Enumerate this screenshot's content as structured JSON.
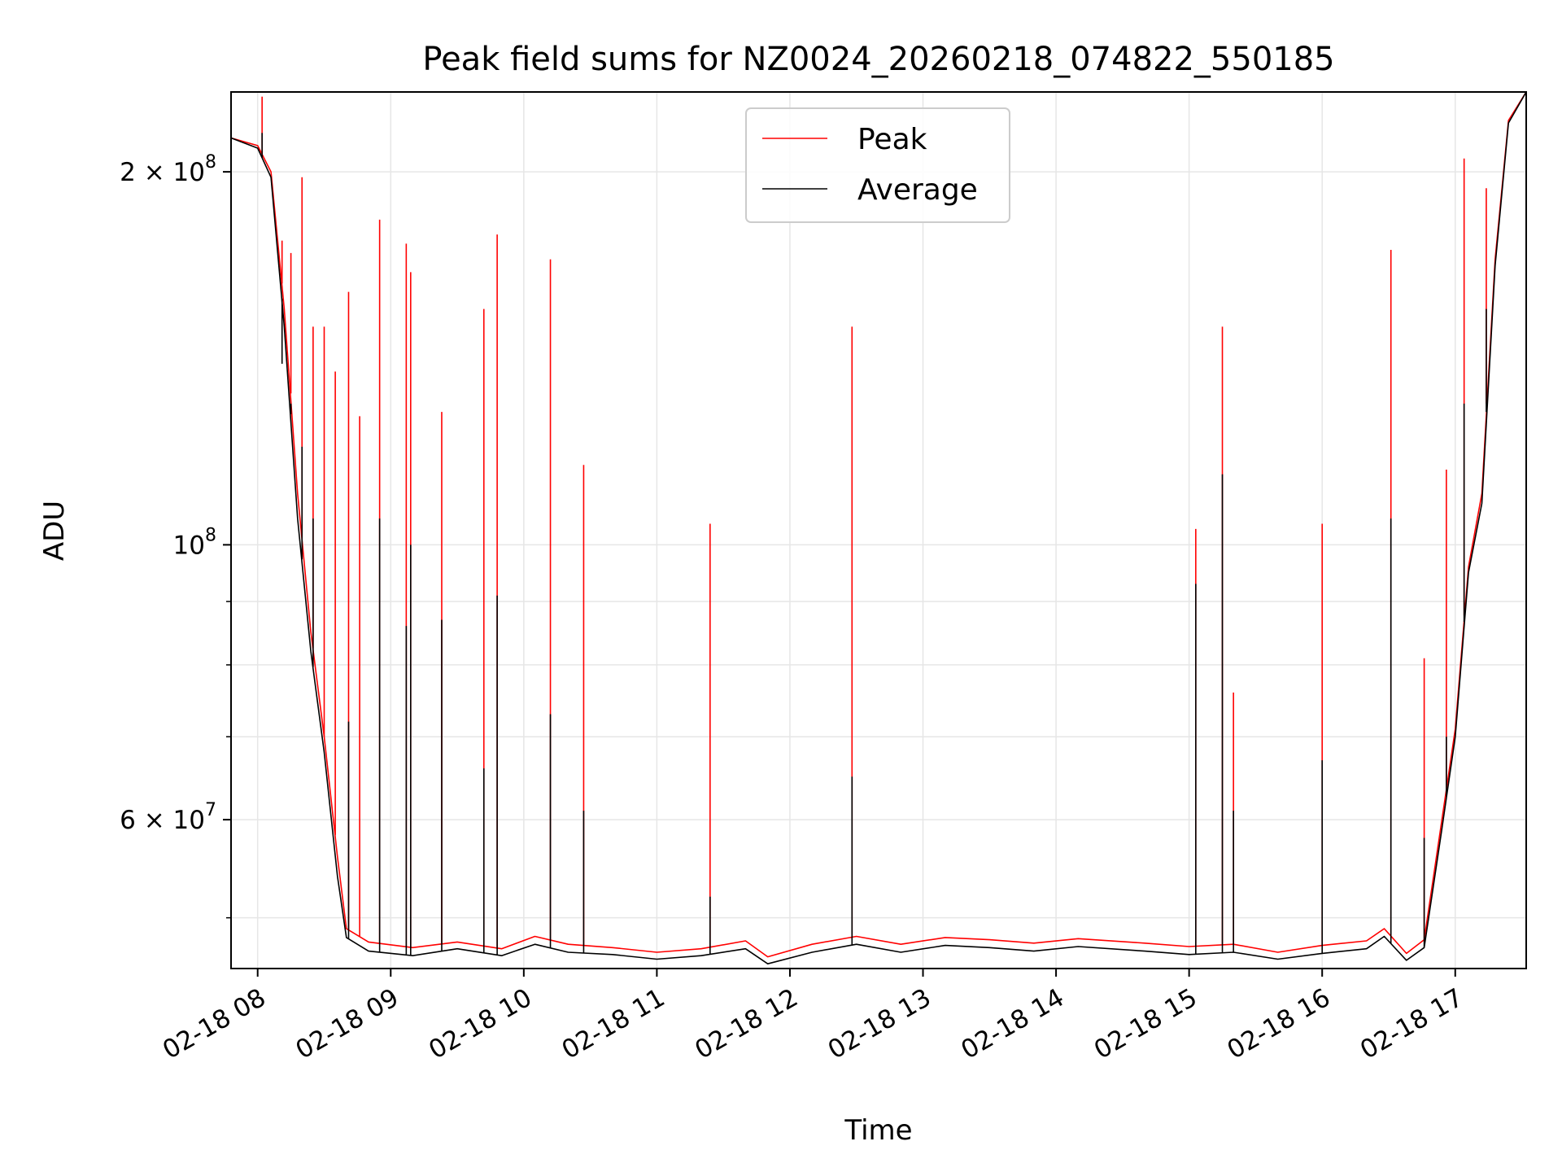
{
  "chart_data": {
    "type": "line",
    "title": "Peak field sums for NZ0024_20260218_074822_550185",
    "xlabel": "Time",
    "ylabel": "ADU",
    "yscale": "log",
    "xlim": [
      "02-18 07:48",
      "02-18 17:32"
    ],
    "ylim": [
      45500000,
      232000000
    ],
    "grid": true,
    "legend_position": "top-center",
    "x_ticks": [
      "02-18 08",
      "02-18 09",
      "02-18 10",
      "02-18 11",
      "02-18 12",
      "02-18 13",
      "02-18 14",
      "02-18 15",
      "02-18 16",
      "02-18 17"
    ],
    "y_ticks": [
      {
        "value": 200000000,
        "label_base": "2 × 10",
        "label_exp": "8"
      },
      {
        "value": 100000000,
        "label_base": "10",
        "label_exp": "8"
      },
      {
        "value": 60000000,
        "label_base": "6 × 10",
        "label_exp": "7"
      }
    ],
    "y_minor_ticks": [
      50000000,
      70000000,
      80000000,
      90000000
    ],
    "series": [
      {
        "name": "Peak",
        "color": "#ff0000",
        "baseline": [
          [
            "02-18 07:48",
            213000000
          ],
          [
            "02-18 08:00",
            210000000
          ],
          [
            "02-18 08:06",
            200000000
          ],
          [
            "02-18 08:12",
            155000000
          ],
          [
            "02-18 08:18",
            110000000
          ],
          [
            "02-18 08:24",
            85000000
          ],
          [
            "02-18 08:30",
            70000000
          ],
          [
            "02-18 08:36",
            56000000
          ],
          [
            "02-18 08:40",
            49000000
          ],
          [
            "02-18 08:50",
            47800000
          ],
          [
            "02-18 09:10",
            47300000
          ],
          [
            "02-18 09:30",
            47800000
          ],
          [
            "02-18 09:50",
            47200000
          ],
          [
            "02-18 10:05",
            48300000
          ],
          [
            "02-18 10:20",
            47600000
          ],
          [
            "02-18 10:40",
            47300000
          ],
          [
            "02-18 11:00",
            46900000
          ],
          [
            "02-18 11:20",
            47200000
          ],
          [
            "02-18 11:40",
            47900000
          ],
          [
            "02-18 11:50",
            46500000
          ],
          [
            "02-18 12:10",
            47600000
          ],
          [
            "02-18 12:30",
            48300000
          ],
          [
            "02-18 12:50",
            47600000
          ],
          [
            "02-18 13:10",
            48200000
          ],
          [
            "02-18 13:30",
            48000000
          ],
          [
            "02-18 13:50",
            47700000
          ],
          [
            "02-18 14:10",
            48100000
          ],
          [
            "02-18 14:40",
            47700000
          ],
          [
            "02-18 15:00",
            47400000
          ],
          [
            "02-18 15:20",
            47600000
          ],
          [
            "02-18 15:40",
            46900000
          ],
          [
            "02-18 16:00",
            47500000
          ],
          [
            "02-18 16:20",
            47900000
          ],
          [
            "02-18 16:28",
            49000000
          ],
          [
            "02-18 16:38",
            46800000
          ],
          [
            "02-18 16:46",
            48000000
          ],
          [
            "02-18 16:54",
            60000000
          ],
          [
            "02-18 17:00",
            71000000
          ],
          [
            "02-18 17:06",
            96000000
          ],
          [
            "02-18 17:12",
            110000000
          ],
          [
            "02-18 17:18",
            170000000
          ],
          [
            "02-18 17:24",
            220000000
          ],
          [
            "02-18 17:32",
            232000000
          ]
        ],
        "spikes": [
          [
            "02-18 08:02",
            230000000
          ],
          [
            "02-18 08:11",
            176000000
          ],
          [
            "02-18 08:15",
            172000000
          ],
          [
            "02-18 08:20",
            198000000
          ],
          [
            "02-18 08:25",
            150000000
          ],
          [
            "02-18 08:30",
            150000000
          ],
          [
            "02-18 08:35",
            138000000
          ],
          [
            "02-18 08:41",
            160000000
          ],
          [
            "02-18 08:46",
            127000000
          ],
          [
            "02-18 08:55",
            183000000
          ],
          [
            "02-18 09:07",
            175000000
          ],
          [
            "02-18 09:09",
            166000000
          ],
          [
            "02-18 09:23",
            128000000
          ],
          [
            "02-18 09:42",
            155000000
          ],
          [
            "02-18 09:48",
            178000000
          ],
          [
            "02-18 10:12",
            170000000
          ],
          [
            "02-18 10:27",
            116000000
          ],
          [
            "02-18 11:24",
            104000000
          ],
          [
            "02-18 12:28",
            150000000
          ],
          [
            "02-18 15:03",
            103000000
          ],
          [
            "02-18 15:15",
            150000000
          ],
          [
            "02-18 15:20",
            76000000
          ],
          [
            "02-18 16:00",
            104000000
          ],
          [
            "02-18 16:31",
            173000000
          ],
          [
            "02-18 16:46",
            81000000
          ],
          [
            "02-18 16:56",
            115000000
          ],
          [
            "02-18 17:04",
            205000000
          ],
          [
            "02-18 17:14",
            194000000
          ]
        ]
      },
      {
        "name": "Average",
        "color": "#000000",
        "baseline": [
          [
            "02-18 07:48",
            213000000
          ],
          [
            "02-18 08:00",
            209000000
          ],
          [
            "02-18 08:06",
            198000000
          ],
          [
            "02-18 08:12",
            150000000
          ],
          [
            "02-18 08:18",
            105000000
          ],
          [
            "02-18 08:24",
            82000000
          ],
          [
            "02-18 08:30",
            68000000
          ],
          [
            "02-18 08:36",
            54000000
          ],
          [
            "02-18 08:40",
            48200000
          ],
          [
            "02-18 08:50",
            47000000
          ],
          [
            "02-18 09:10",
            46600000
          ],
          [
            "02-18 09:30",
            47200000
          ],
          [
            "02-18 09:50",
            46600000
          ],
          [
            "02-18 10:05",
            47600000
          ],
          [
            "02-18 10:20",
            46900000
          ],
          [
            "02-18 10:40",
            46700000
          ],
          [
            "02-18 11:00",
            46300000
          ],
          [
            "02-18 11:20",
            46600000
          ],
          [
            "02-18 11:40",
            47200000
          ],
          [
            "02-18 11:50",
            45900000
          ],
          [
            "02-18 12:10",
            46900000
          ],
          [
            "02-18 12:30",
            47600000
          ],
          [
            "02-18 12:50",
            46900000
          ],
          [
            "02-18 13:10",
            47500000
          ],
          [
            "02-18 13:30",
            47300000
          ],
          [
            "02-18 13:50",
            47000000
          ],
          [
            "02-18 14:10",
            47400000
          ],
          [
            "02-18 14:40",
            47000000
          ],
          [
            "02-18 15:00",
            46700000
          ],
          [
            "02-18 15:20",
            46900000
          ],
          [
            "02-18 15:40",
            46300000
          ],
          [
            "02-18 16:00",
            46800000
          ],
          [
            "02-18 16:20",
            47200000
          ],
          [
            "02-18 16:28",
            48300000
          ],
          [
            "02-18 16:38",
            46200000
          ],
          [
            "02-18 16:46",
            47300000
          ],
          [
            "02-18 16:54",
            59000000
          ],
          [
            "02-18 17:00",
            70000000
          ],
          [
            "02-18 17:06",
            95000000
          ],
          [
            "02-18 17:12",
            108000000
          ],
          [
            "02-18 17:18",
            168000000
          ],
          [
            "02-18 17:24",
            219000000
          ],
          [
            "02-18 17:32",
            232000000
          ]
        ],
        "spikes": [
          [
            "02-18 08:02",
            215000000
          ],
          [
            "02-18 08:11",
            140000000
          ],
          [
            "02-18 08:15",
            130000000
          ],
          [
            "02-18 08:20",
            120000000
          ],
          [
            "02-18 08:25",
            105000000
          ],
          [
            "02-18 08:41",
            72000000
          ],
          [
            "02-18 08:55",
            105000000
          ],
          [
            "02-18 09:07",
            86000000
          ],
          [
            "02-18 09:09",
            100000000
          ],
          [
            "02-18 09:23",
            87000000
          ],
          [
            "02-18 09:42",
            66000000
          ],
          [
            "02-18 09:48",
            91000000
          ],
          [
            "02-18 10:12",
            73000000
          ],
          [
            "02-18 10:27",
            61000000
          ],
          [
            "02-18 11:24",
            52000000
          ],
          [
            "02-18 12:28",
            65000000
          ],
          [
            "02-18 15:03",
            93000000
          ],
          [
            "02-18 15:15",
            114000000
          ],
          [
            "02-18 15:20",
            61000000
          ],
          [
            "02-18 16:00",
            67000000
          ],
          [
            "02-18 16:31",
            105000000
          ],
          [
            "02-18 16:46",
            58000000
          ],
          [
            "02-18 16:56",
            70000000
          ],
          [
            "02-18 17:04",
            130000000
          ],
          [
            "02-18 17:14",
            155000000
          ]
        ]
      }
    ]
  }
}
